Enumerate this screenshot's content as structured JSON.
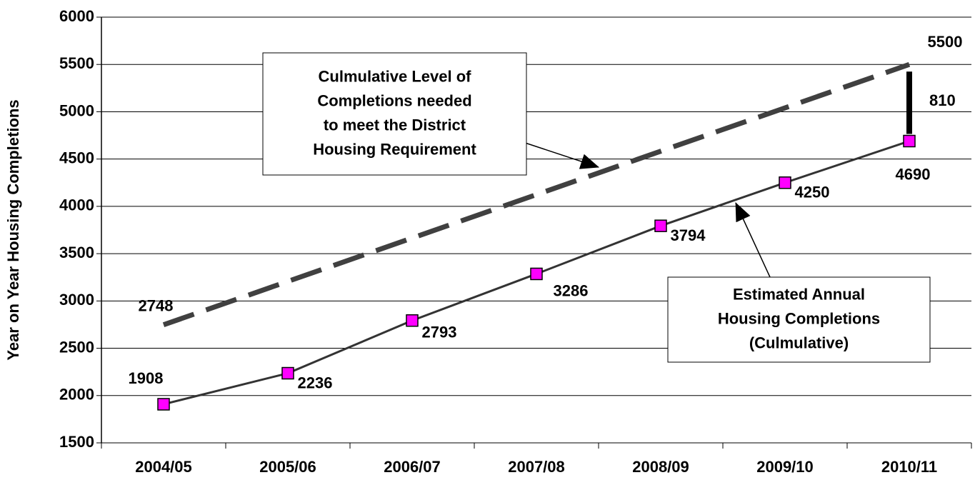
{
  "chart_data": {
    "type": "line",
    "y_label": "Year on Year Housing Completions",
    "categories": [
      "2004/05",
      "2005/06",
      "2006/07",
      "2007/08",
      "2008/09",
      "2009/10",
      "2010/11"
    ],
    "series": [
      {
        "name": "Estimated Annual Housing Completions (Culmulative)",
        "color": "#333333",
        "marker_color": "#ff00ff",
        "dash": false,
        "values": [
          1908,
          2236,
          2793,
          3286,
          3794,
          4250,
          4690
        ]
      },
      {
        "name": "Culmulative Level of Completions needed to meet the District Housing Requirement",
        "color": "#404040",
        "dash": true,
        "values": [
          2748,
          3207,
          3665,
          4124,
          4583,
          5041,
          5500
        ],
        "value_labels": [
          "2748",
          null,
          null,
          null,
          null,
          null,
          "5500"
        ]
      }
    ],
    "gap": {
      "value": 810,
      "color": "#000000"
    },
    "annotations": [
      {
        "lines": [
          "Culmulative Level of",
          "Completions needed",
          "to meet the District",
          "Housing Requirement"
        ]
      },
      {
        "lines": [
          "Estimated Annual",
          "Housing Completions",
          "(Culmulative)"
        ]
      }
    ],
    "ylim": [
      1500,
      6000
    ],
    "yticks": [
      1500,
      2000,
      2500,
      3000,
      3500,
      4000,
      4500,
      5000,
      5500,
      6000
    ],
    "grid": true
  }
}
